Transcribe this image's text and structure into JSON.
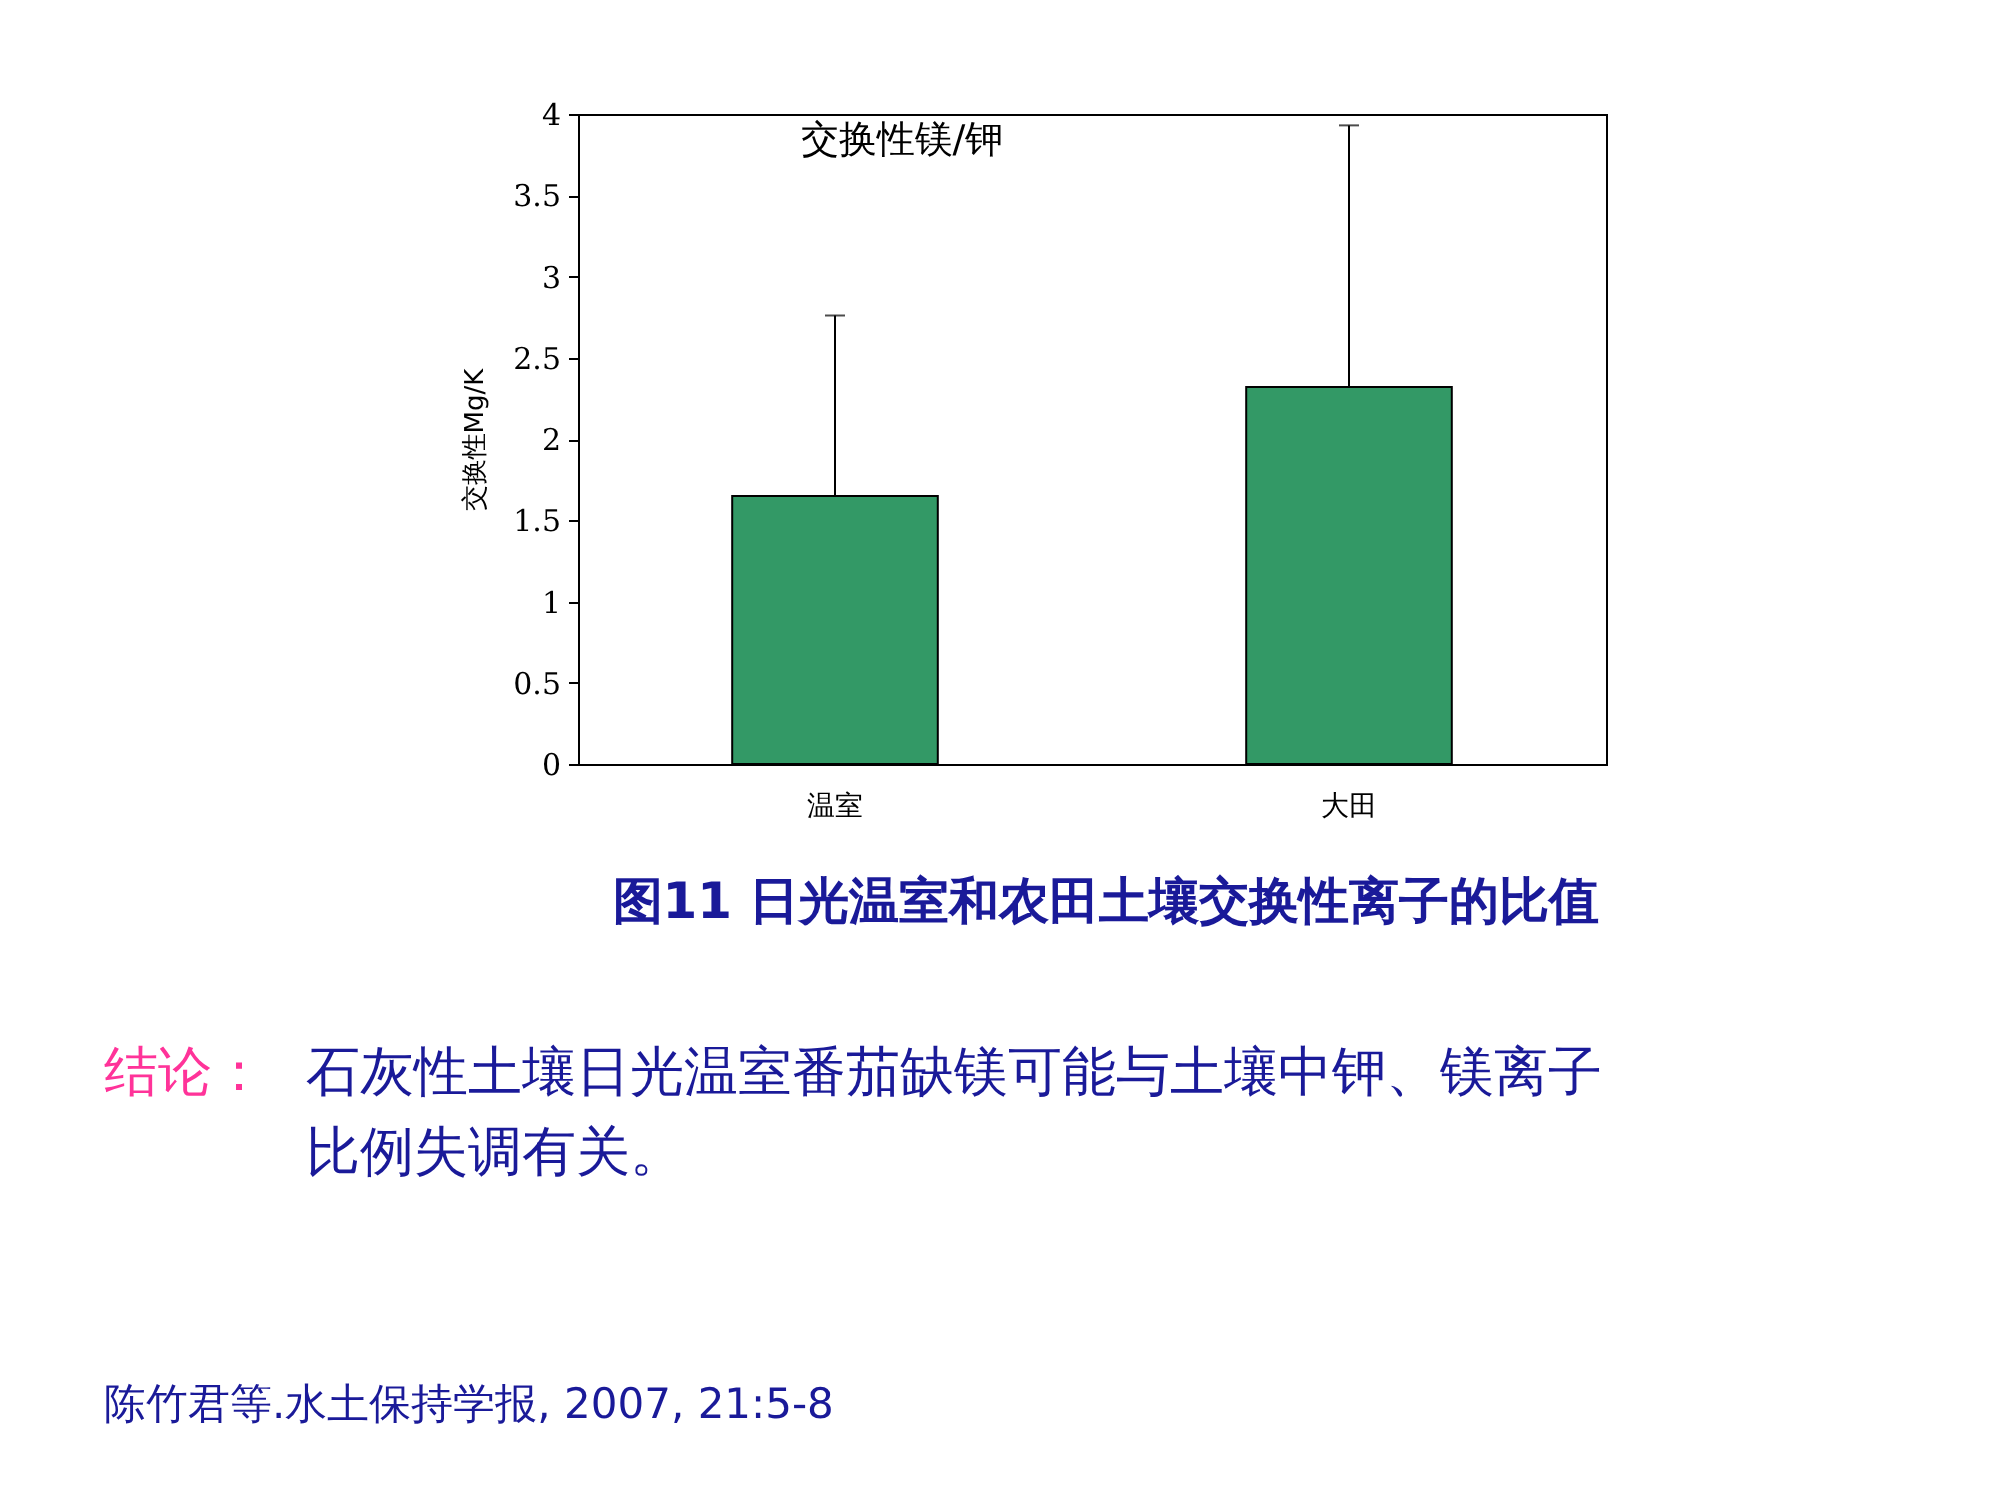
{
  "chart_data": {
    "type": "bar",
    "title": "交换性镁/钾",
    "ylabel": "交换性Mg/K",
    "categories": [
      "温室",
      "大田"
    ],
    "series": [
      {
        "color": "#339966",
        "values": [
          1.65,
          2.32
        ],
        "errors": [
          [
            1.65,
            2.76
          ],
          [
            2.32,
            3.93
          ]
        ]
      }
    ],
    "ylim": [
      0,
      4
    ],
    "yticks": [
      0,
      0.5,
      1,
      1.5,
      2,
      2.5,
      3,
      3.5,
      4
    ],
    "grid": false,
    "annotations": [
      "图11 日光温室和农田土壤交换性离子的比值",
      "结论：",
      "石灰性土壤日光温室番茄缺镁可能与土壤中钾、镁离子比例失调有关。",
      "陈竹君等.水土保持学报, 2007, 21:5-8"
    ]
  }
}
